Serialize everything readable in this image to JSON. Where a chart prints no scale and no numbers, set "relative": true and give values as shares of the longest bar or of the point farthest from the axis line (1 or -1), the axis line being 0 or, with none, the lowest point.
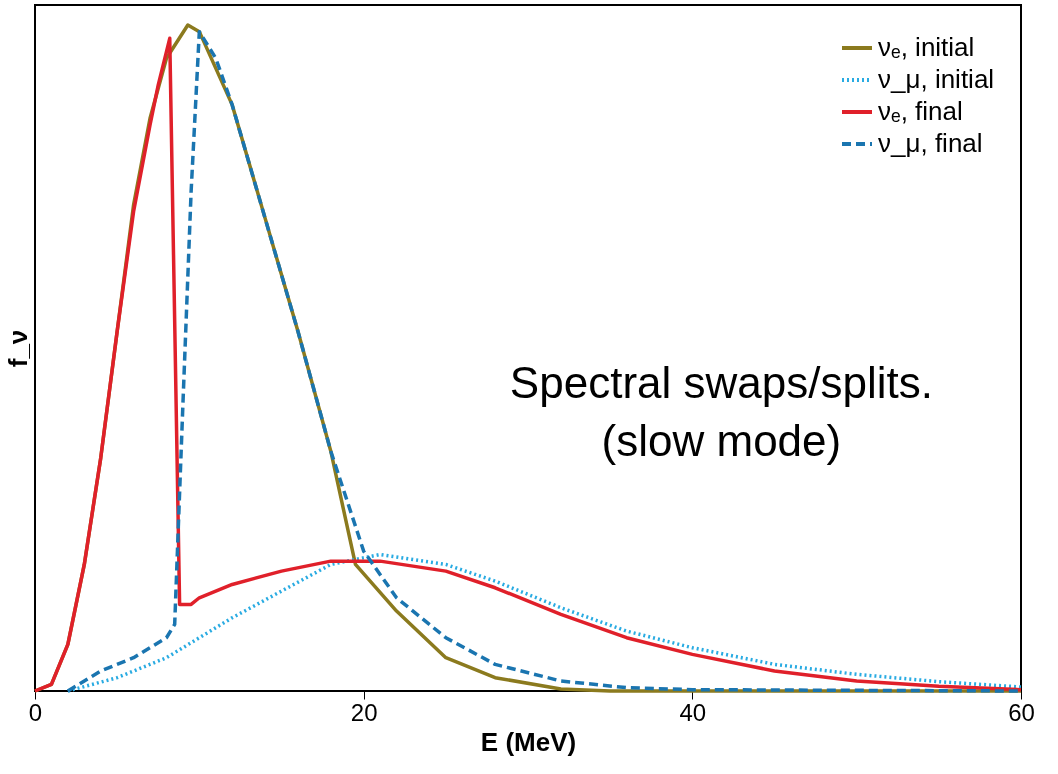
{
  "chart_data": {
    "type": "line",
    "relative": true,
    "xlabel": "E (MeV)",
    "ylabel": "f_ν",
    "xlim": [
      0,
      60
    ],
    "xticks": [
      0,
      20,
      40,
      60
    ],
    "grid": false,
    "legend": "top right",
    "marker": "none",
    "annotations": [
      "Spectral swaps/splits.",
      "(slow mode)"
    ],
    "series": [
      {
        "name": "νₑ, initial",
        "color": "#8b7a1e",
        "line_style": "solid",
        "x": [
          0,
          1,
          2,
          3,
          4,
          5,
          6,
          7,
          8,
          9.3,
          10,
          12,
          14,
          16,
          18,
          19.5,
          22,
          25,
          28,
          32,
          35,
          60
        ],
        "values": [
          0,
          0.01,
          0.07,
          0.19,
          0.35,
          0.54,
          0.73,
          0.86,
          0.95,
          1.0,
          0.99,
          0.88,
          0.71,
          0.54,
          0.36,
          0.19,
          0.12,
          0.05,
          0.02,
          0.003,
          0,
          0
        ]
      },
      {
        "name": "ν_μ, initial",
        "color": "#29abe2",
        "line_style": "dotted",
        "x": [
          2,
          5,
          8,
          10,
          12,
          15,
          18,
          21,
          25,
          28,
          32,
          36,
          40,
          45,
          50,
          55,
          60
        ],
        "values": [
          0,
          0.02,
          0.05,
          0.08,
          0.11,
          0.15,
          0.19,
          0.205,
          0.19,
          0.165,
          0.125,
          0.09,
          0.065,
          0.04,
          0.025,
          0.014,
          0.006
        ]
      },
      {
        "name": "νₑ, final",
        "color": "#e0202a",
        "line_style": "solid",
        "x": [
          0,
          1,
          2,
          3,
          4,
          5,
          6,
          7,
          7.5,
          8.2,
          8.8,
          9.5,
          10,
          12,
          15,
          18,
          21,
          25,
          28,
          32,
          36,
          40,
          45,
          50,
          55,
          60
        ],
        "values": [
          0,
          0.01,
          0.07,
          0.19,
          0.35,
          0.54,
          0.72,
          0.85,
          0.91,
          0.98,
          0.13,
          0.13,
          0.14,
          0.16,
          0.18,
          0.195,
          0.195,
          0.18,
          0.155,
          0.115,
          0.08,
          0.055,
          0.03,
          0.015,
          0.007,
          0.002
        ]
      },
      {
        "name": "ν_μ, final",
        "color": "#1a75b0",
        "line_style": "dashed",
        "x": [
          2,
          4,
          6,
          8,
          8.5,
          9,
          9.5,
          10,
          11,
          12,
          14,
          16,
          18,
          20,
          22,
          25,
          28,
          32,
          36,
          40,
          60
        ],
        "values": [
          0,
          0.03,
          0.05,
          0.08,
          0.1,
          0.43,
          0.75,
          0.99,
          0.95,
          0.88,
          0.71,
          0.54,
          0.36,
          0.21,
          0.14,
          0.08,
          0.04,
          0.015,
          0.005,
          0.002,
          0
        ]
      }
    ]
  }
}
